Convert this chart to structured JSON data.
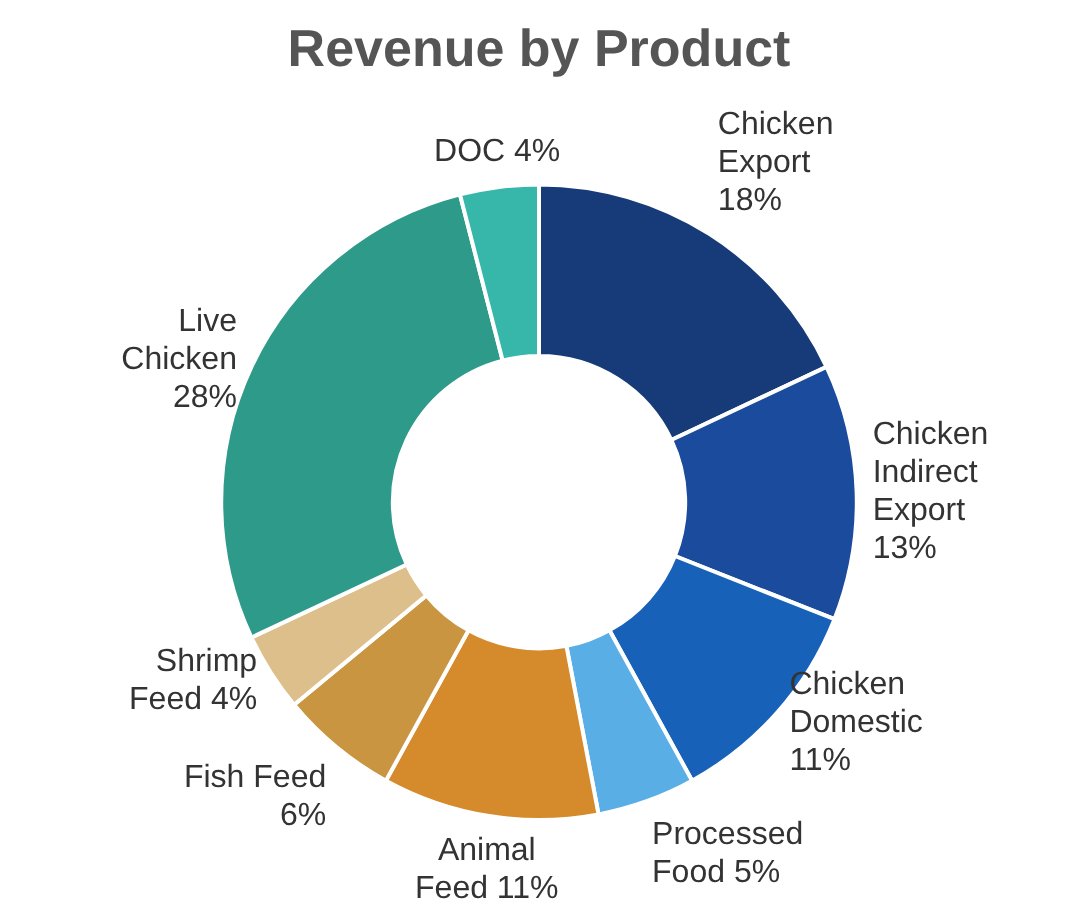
{
  "chart_data": {
    "type": "donut",
    "title": "Revenue by Product",
    "categories": [
      "Chicken Export",
      "Chicken Indirect Export",
      "Chicken Domestic",
      "Processed Food",
      "Animal Feed",
      "Fish Feed",
      "Shrimp Feed",
      "Live Chicken",
      "DOC"
    ],
    "values": [
      18,
      13,
      11,
      5,
      11,
      6,
      4,
      28,
      4
    ],
    "value_labels": [
      "18%",
      "13%",
      "11%",
      "5%",
      "11%",
      "6%",
      "4%",
      "28%",
      "4%"
    ],
    "colors": [
      "#173a78",
      "#1a4b9c",
      "#1762b8",
      "#5aaee6",
      "#d58a2b",
      "#c99540",
      "#dcbf8a",
      "#2e9a8a",
      "#36b7aa"
    ],
    "legend": false
  }
}
